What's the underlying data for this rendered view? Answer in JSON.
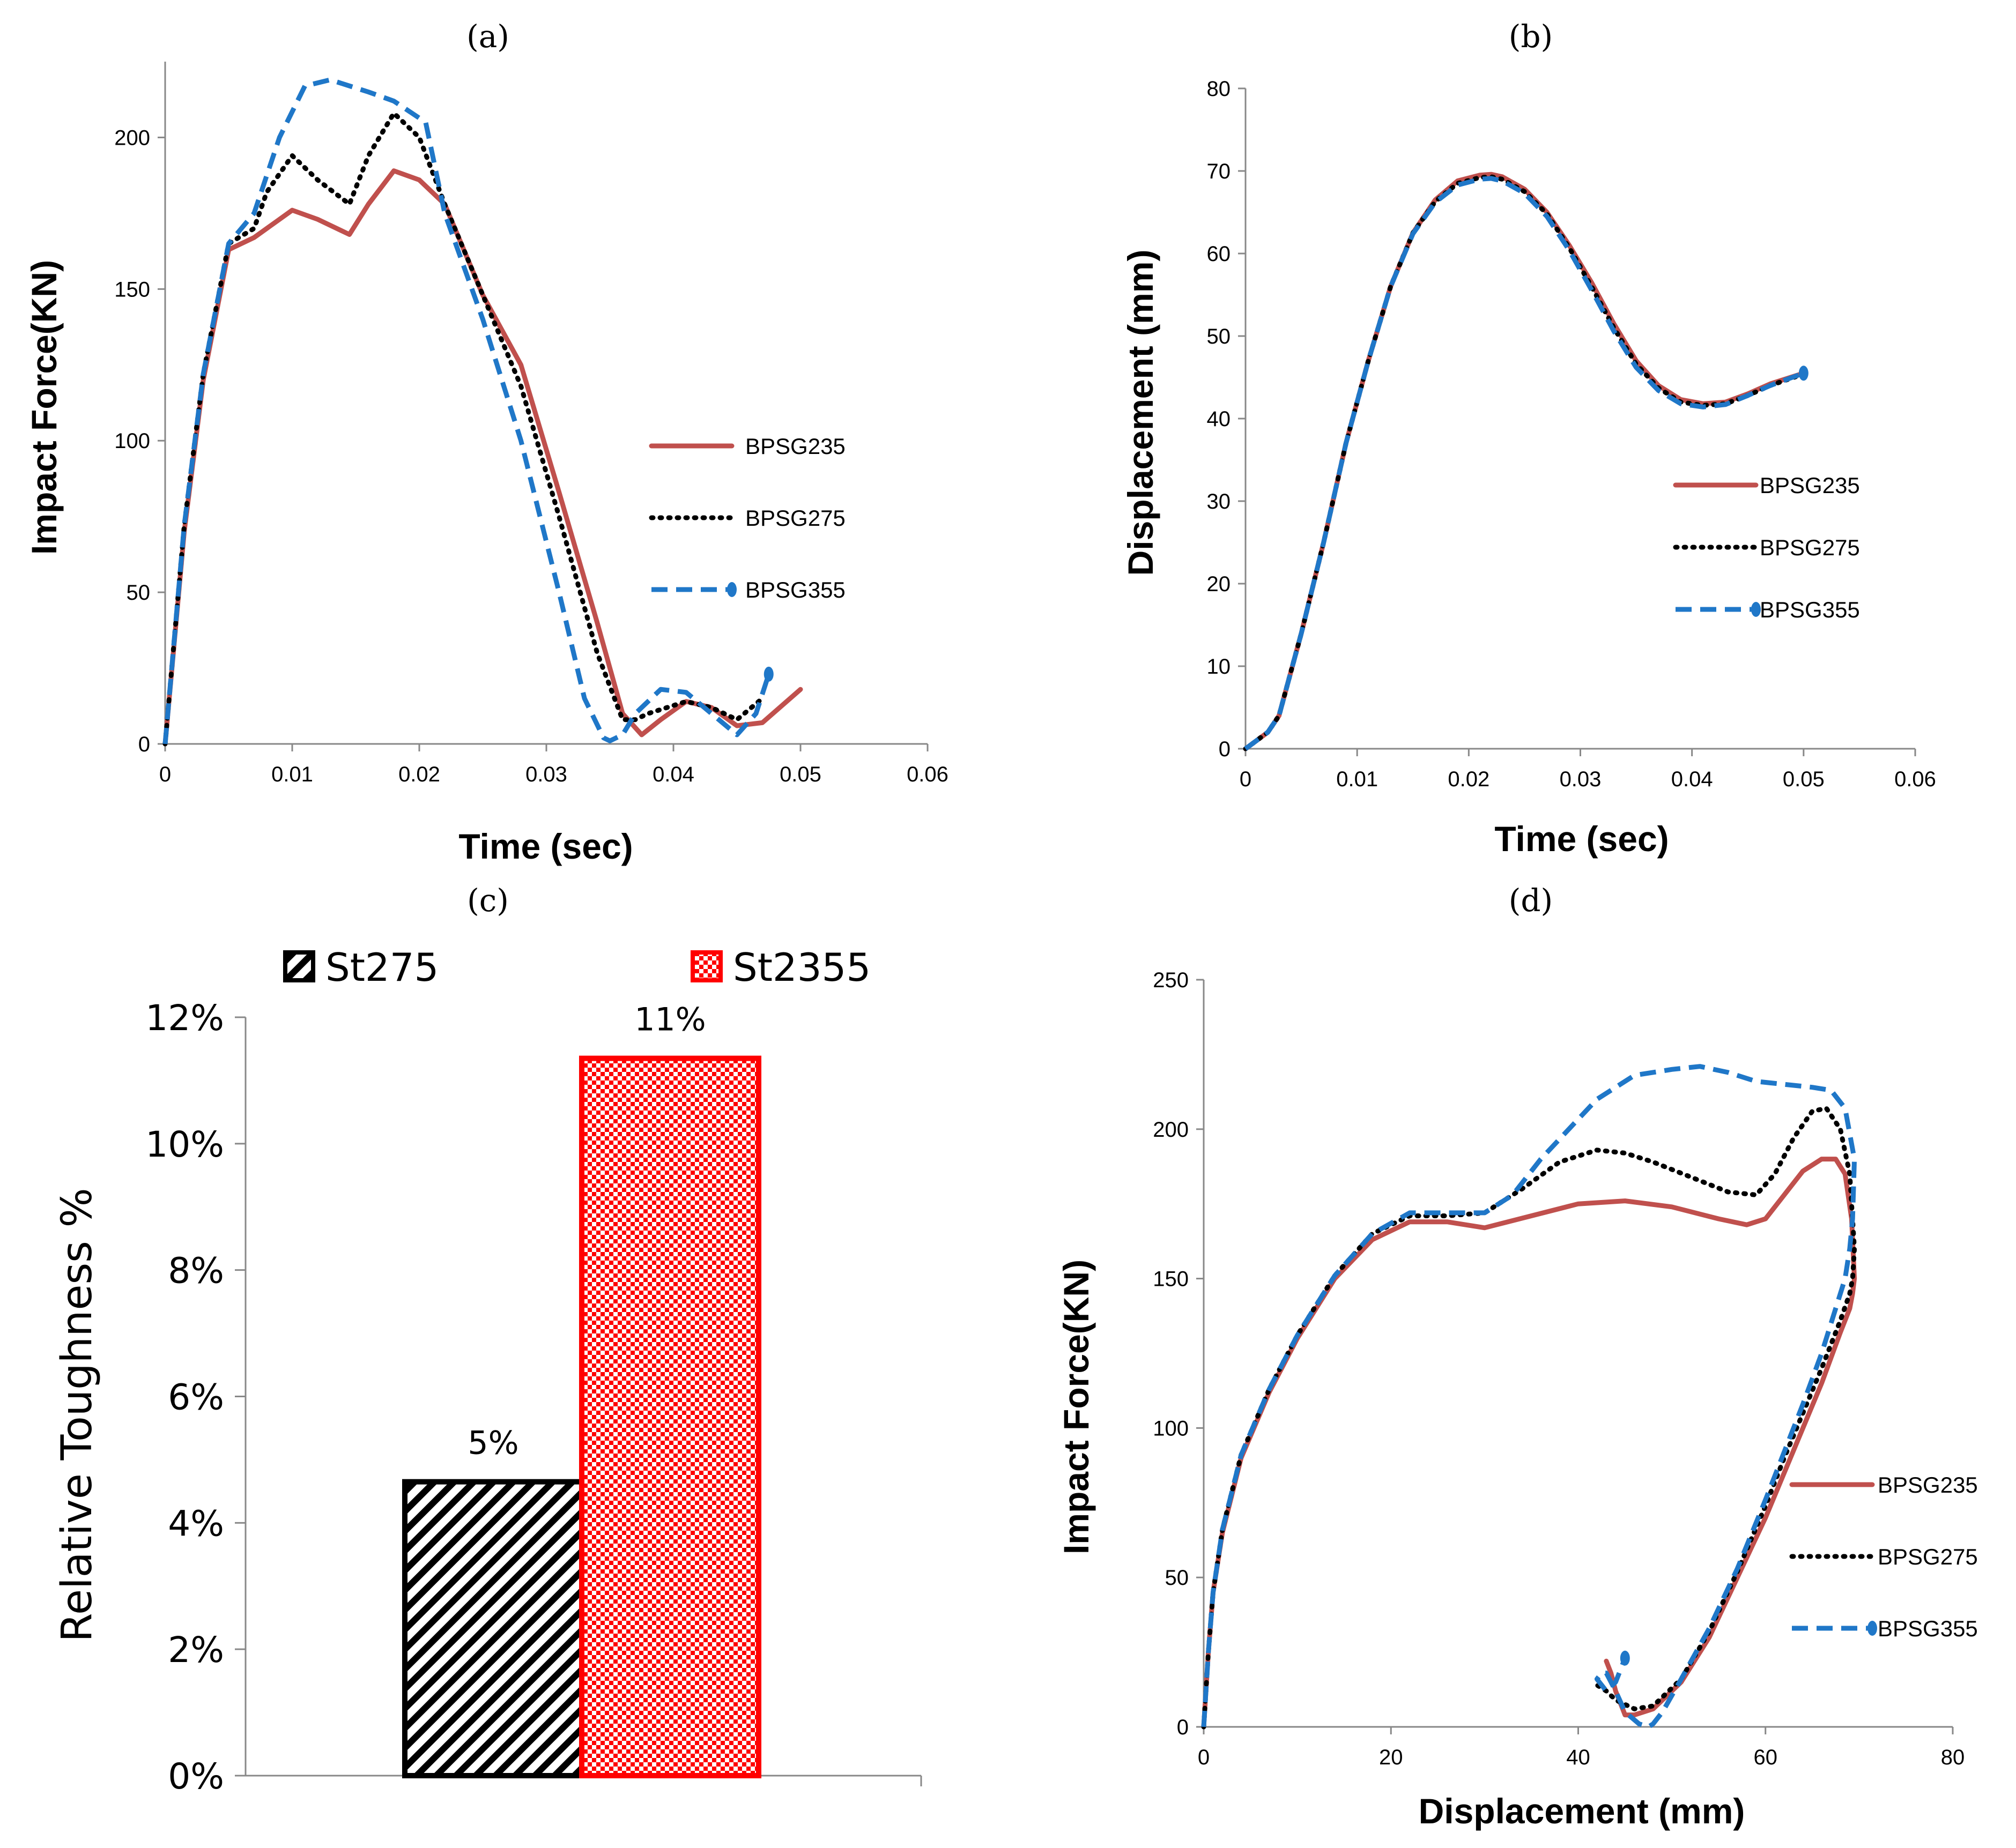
{
  "chart_data": [
    {
      "id": "a",
      "panel_label": "(a)",
      "type": "line",
      "title": "",
      "xlabel": "Time (sec)",
      "ylabel": "Impact Force(KN)",
      "xlim": [
        0,
        0.06
      ],
      "ylim": [
        0,
        225
      ],
      "xticks": [
        "0",
        "0.01",
        "0.02",
        "0.03",
        "0.04",
        "0.05",
        "0.06"
      ],
      "yticks": [
        "0",
        "50",
        "100",
        "150",
        "200"
      ],
      "legend_position": "right",
      "series": [
        {
          "name": "BPSG235",
          "color": "#c0504d",
          "style": "solid",
          "marker_end": false,
          "x": [
            0,
            0.0015,
            0.003,
            0.005,
            0.007,
            0.008,
            0.01,
            0.012,
            0.0145,
            0.016,
            0.018,
            0.02,
            0.022,
            0.025,
            0.028,
            0.031,
            0.034,
            0.036,
            0.0375,
            0.039,
            0.041,
            0.043,
            0.045,
            0.047,
            0.05
          ],
          "y": [
            0,
            70,
            120,
            163,
            167,
            170,
            176,
            173,
            168,
            178,
            189,
            186,
            178,
            148,
            125,
            83,
            40,
            10,
            3,
            8,
            14,
            12,
            6,
            7,
            18
          ]
        },
        {
          "name": "BPSG275",
          "color": "#000000",
          "style": "dotted",
          "marker_end": false,
          "x": [
            0,
            0.0015,
            0.003,
            0.005,
            0.007,
            0.008,
            0.01,
            0.012,
            0.0145,
            0.016,
            0.018,
            0.02,
            0.022,
            0.025,
            0.028,
            0.031,
            0.034,
            0.036,
            0.037,
            0.038,
            0.041,
            0.043,
            0.045,
            0.047
          ],
          "y": [
            0,
            72,
            122,
            165,
            170,
            182,
            194,
            186,
            178,
            194,
            208,
            200,
            178,
            148,
            118,
            75,
            30,
            8,
            8,
            10,
            14,
            12,
            8,
            15
          ]
        },
        {
          "name": "BPSG355",
          "color": "#1f77c8",
          "style": "dashed",
          "marker_end": true,
          "x": [
            0,
            0.0015,
            0.003,
            0.005,
            0.007,
            0.009,
            0.011,
            0.013,
            0.016,
            0.018,
            0.0205,
            0.022,
            0.025,
            0.028,
            0.031,
            0.033,
            0.0345,
            0.035,
            0.036,
            0.037,
            0.039,
            0.041,
            0.043,
            0.045,
            0.0465,
            0.0475
          ],
          "y": [
            0,
            72,
            122,
            165,
            175,
            200,
            217,
            219,
            215,
            212,
            205,
            175,
            140,
            100,
            50,
            15,
            2,
            1,
            3,
            10,
            18,
            17,
            10,
            3,
            10,
            23
          ]
        }
      ]
    },
    {
      "id": "b",
      "panel_label": "(b)",
      "type": "line",
      "title": "",
      "xlabel": "Time (sec)",
      "ylabel": "Displacement  (mm)",
      "xlim": [
        0,
        0.06
      ],
      "ylim": [
        0,
        80
      ],
      "xticks": [
        "0",
        "0.01",
        "0.02",
        "0.03",
        "0.04",
        "0.05",
        "0.06"
      ],
      "yticks": [
        "0",
        "10",
        "20",
        "30",
        "40",
        "50",
        "60",
        "70",
        "80"
      ],
      "legend_position": "right",
      "series": [
        {
          "name": "BPSG235",
          "color": "#c0504d",
          "style": "solid",
          "marker_end": false,
          "x": [
            0,
            0.001,
            0.002,
            0.003,
            0.005,
            0.007,
            0.009,
            0.011,
            0.013,
            0.015,
            0.017,
            0.019,
            0.021,
            0.022,
            0.023,
            0.025,
            0.027,
            0.029,
            0.031,
            0.033,
            0.035,
            0.037,
            0.039,
            0.041,
            0.043,
            0.045,
            0.047,
            0.05
          ],
          "y": [
            0,
            1,
            2,
            4,
            14,
            25,
            37,
            47,
            56,
            62.5,
            66.5,
            68.8,
            69.5,
            69.6,
            69.3,
            67.8,
            65,
            61,
            56.5,
            51.5,
            47,
            44,
            42.3,
            41.8,
            42,
            43,
            44.2,
            45.5
          ]
        },
        {
          "name": "BPSG275",
          "color": "#000000",
          "style": "dotted",
          "marker_end": false,
          "x": [
            0,
            0.001,
            0.002,
            0.003,
            0.005,
            0.007,
            0.009,
            0.011,
            0.013,
            0.015,
            0.017,
            0.019,
            0.021,
            0.022,
            0.023,
            0.025,
            0.027,
            0.029,
            0.031,
            0.033,
            0.035,
            0.037,
            0.039,
            0.041,
            0.043,
            0.045,
            0.047,
            0.05
          ],
          "y": [
            0,
            1,
            2,
            4,
            14,
            25,
            37,
            47,
            56,
            62.5,
            66.3,
            68.5,
            69.2,
            69.3,
            69,
            67.5,
            64.8,
            60.7,
            56,
            51,
            46.6,
            43.7,
            42,
            41.6,
            41.8,
            42.8,
            44,
            45.4
          ]
        },
        {
          "name": "BPSG355",
          "color": "#1f77c8",
          "style": "dashed",
          "marker_end": true,
          "x": [
            0,
            0.001,
            0.002,
            0.003,
            0.005,
            0.007,
            0.009,
            0.011,
            0.013,
            0.015,
            0.017,
            0.019,
            0.021,
            0.022,
            0.023,
            0.025,
            0.027,
            0.029,
            0.031,
            0.033,
            0.035,
            0.037,
            0.039,
            0.041,
            0.043,
            0.045,
            0.047,
            0.05
          ],
          "y": [
            0,
            1,
            2,
            4,
            14,
            25,
            37,
            47,
            56,
            62.4,
            66.2,
            68.3,
            69,
            69.1,
            68.8,
            67.3,
            64.5,
            60.4,
            55.6,
            50.6,
            46.2,
            43.4,
            41.8,
            41.4,
            41.7,
            42.8,
            44,
            45.5
          ]
        }
      ]
    },
    {
      "id": "c",
      "panel_label": "(c)",
      "type": "bar",
      "title": "",
      "xlabel": "",
      "ylabel": "Relative Toughness %",
      "ylim": [
        0,
        0.12
      ],
      "yticks": [
        "0%",
        "2%",
        "4%",
        "6%",
        "8%",
        "10%",
        "12%"
      ],
      "legend_position": "top",
      "categories": [
        ""
      ],
      "series": [
        {
          "name": "St275",
          "values": [
            0.0465
          ],
          "data_label": "5%",
          "color": "#000000",
          "pattern": "diagonal-stripes"
        },
        {
          "name": "St2355",
          "values": [
            0.1135
          ],
          "data_label": "11%",
          "color": "#ff0000",
          "pattern": "checker"
        }
      ]
    },
    {
      "id": "d",
      "panel_label": "(d)",
      "type": "line",
      "title": "",
      "xlabel": "Displacement (mm)",
      "ylabel": "Impact Force(KN)",
      "xlim": [
        0,
        80
      ],
      "ylim": [
        0,
        250
      ],
      "xticks": [
        "0",
        "20",
        "40",
        "60",
        "80"
      ],
      "yticks": [
        "0",
        "50",
        "100",
        "150",
        "200",
        "250"
      ],
      "legend_position": "right",
      "series": [
        {
          "name": "BPSG235",
          "color": "#c0504d",
          "style": "solid",
          "marker_end": false,
          "x": [
            0,
            0.5,
            1,
            2,
            4,
            7,
            10,
            14,
            18,
            22,
            26,
            30,
            35,
            40,
            45,
            50,
            55,
            58,
            60,
            62,
            64,
            66,
            67.5,
            68.5,
            69.2,
            69.5,
            69.3,
            69,
            68,
            66,
            64,
            62,
            60,
            57,
            54,
            51,
            48,
            46,
            45,
            44.5,
            44,
            43.5,
            43
          ],
          "y": [
            0,
            25,
            45,
            65,
            90,
            112,
            130,
            150,
            163,
            169,
            169,
            167,
            171,
            175,
            176,
            174,
            170,
            168,
            170,
            178,
            186,
            190,
            190,
            185,
            170,
            150,
            145,
            140,
            132,
            115,
            100,
            85,
            70,
            50,
            30,
            15,
            6,
            4,
            4,
            8,
            12,
            18,
            22
          ]
        },
        {
          "name": "BPSG275",
          "color": "#000000",
          "style": "dotted",
          "marker_end": false,
          "x": [
            0,
            0.5,
            1,
            2,
            4,
            7,
            10,
            14,
            18,
            22,
            26,
            30,
            34,
            38,
            42,
            45,
            48,
            52,
            56,
            59,
            61,
            63,
            65,
            66.5,
            68,
            69,
            69.5,
            69.3,
            69,
            68,
            66,
            64,
            62,
            60,
            57,
            54,
            51,
            48,
            46,
            44,
            43,
            42,
            41.5
          ],
          "y": [
            0,
            25,
            45,
            66,
            91,
            113,
            131,
            151,
            165,
            171,
            171,
            172,
            180,
            189,
            193,
            192,
            189,
            184,
            179,
            178,
            185,
            197,
            206,
            207,
            200,
            185,
            160,
            150,
            145,
            136,
            120,
            105,
            90,
            74,
            52,
            32,
            16,
            7,
            6,
            9,
            12,
            14,
            14
          ]
        },
        {
          "name": "BPSG355",
          "color": "#1f77c8",
          "style": "dashed",
          "marker_end": true,
          "x": [
            0,
            0.5,
            1,
            2,
            4,
            7,
            10,
            14,
            18,
            22,
            26,
            30,
            33,
            36,
            39,
            42,
            46,
            50,
            53,
            56,
            59,
            62,
            65,
            67,
            68.5,
            69.5,
            69.3,
            69,
            68.5,
            67.5,
            66,
            64,
            62,
            60,
            57,
            54,
            51,
            49,
            48,
            47.5,
            46.5,
            45,
            44,
            43,
            42.5,
            42,
            43,
            44,
            45
          ],
          "y": [
            0,
            25,
            45,
            66,
            91,
            113,
            131,
            151,
            165,
            172,
            172,
            172,
            178,
            190,
            200,
            210,
            218,
            220,
            221,
            219,
            216,
            215,
            214,
            213,
            207,
            190,
            170,
            160,
            150,
            140,
            125,
            108,
            92,
            76,
            53,
            33,
            16,
            5,
            1,
            0,
            1,
            5,
            12,
            18,
            18,
            16,
            12,
            15,
            23
          ]
        }
      ]
    }
  ]
}
